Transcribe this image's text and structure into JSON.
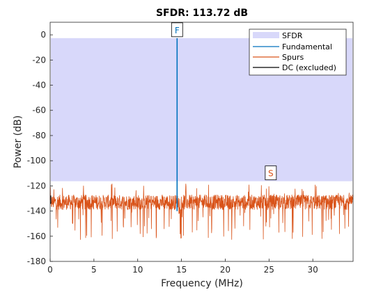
{
  "chart_data": {
    "type": "line",
    "title": "SFDR: 113.72 dB",
    "xlabel": "Frequency (MHz)",
    "ylabel": "Power (dB)",
    "xlim": [
      0,
      34.6
    ],
    "ylim": [
      -180,
      10
    ],
    "x_ticks": [
      0,
      5,
      10,
      15,
      20,
      25,
      30
    ],
    "y_ticks": [
      0,
      -20,
      -40,
      -60,
      -80,
      -100,
      -120,
      -140,
      -160,
      -180
    ],
    "grid": false,
    "legend_position": "top-right",
    "sfdr_band": {
      "upper": -2.6,
      "lower": -116.3
    },
    "fundamental": {
      "x": 14.5,
      "peak": -2.6,
      "floor": -140
    },
    "spurs": {
      "x_start": 0,
      "x_end": 34.6,
      "mean": -133,
      "max": -117,
      "min": -172
    },
    "dc": {
      "x": 0,
      "y": -131
    },
    "markers": [
      {
        "label": "F",
        "x": 14.5,
        "y": -2.6,
        "color": "#0072BD"
      },
      {
        "label": "S",
        "x": 25.2,
        "y": -116.3,
        "color": "#D95319"
      }
    ],
    "series": [
      {
        "name": "SFDR",
        "color": "#D8D8FA"
      },
      {
        "name": "Fundamental",
        "color": "#0072BD"
      },
      {
        "name": "Spurs",
        "color": "#D95319"
      },
      {
        "name": "DC (excluded)",
        "color": "#000000"
      }
    ]
  }
}
